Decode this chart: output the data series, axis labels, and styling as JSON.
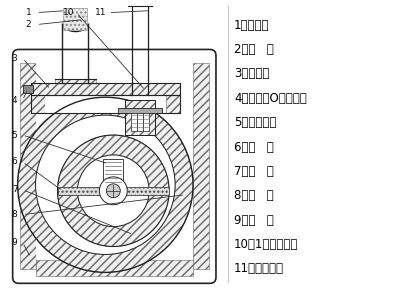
{
  "labels": [
    "1、进气和",
    "2、滤   网",
    "3、挡油板",
    "4、进气和O形密封圈",
    "5、旋片弹簧",
    "6、旋   片",
    "7、转   子",
    "8、泵   身",
    "9、油   笱",
    "10、1号真空泵油",
    "11、排气阀片"
  ],
  "callout_nums": [
    "1",
    "2",
    "3",
    "4",
    "5",
    "6",
    "7",
    "8",
    "9",
    "10",
    "11"
  ],
  "lc": "#222222",
  "hc": "#666666",
  "bg": "#ffffff"
}
